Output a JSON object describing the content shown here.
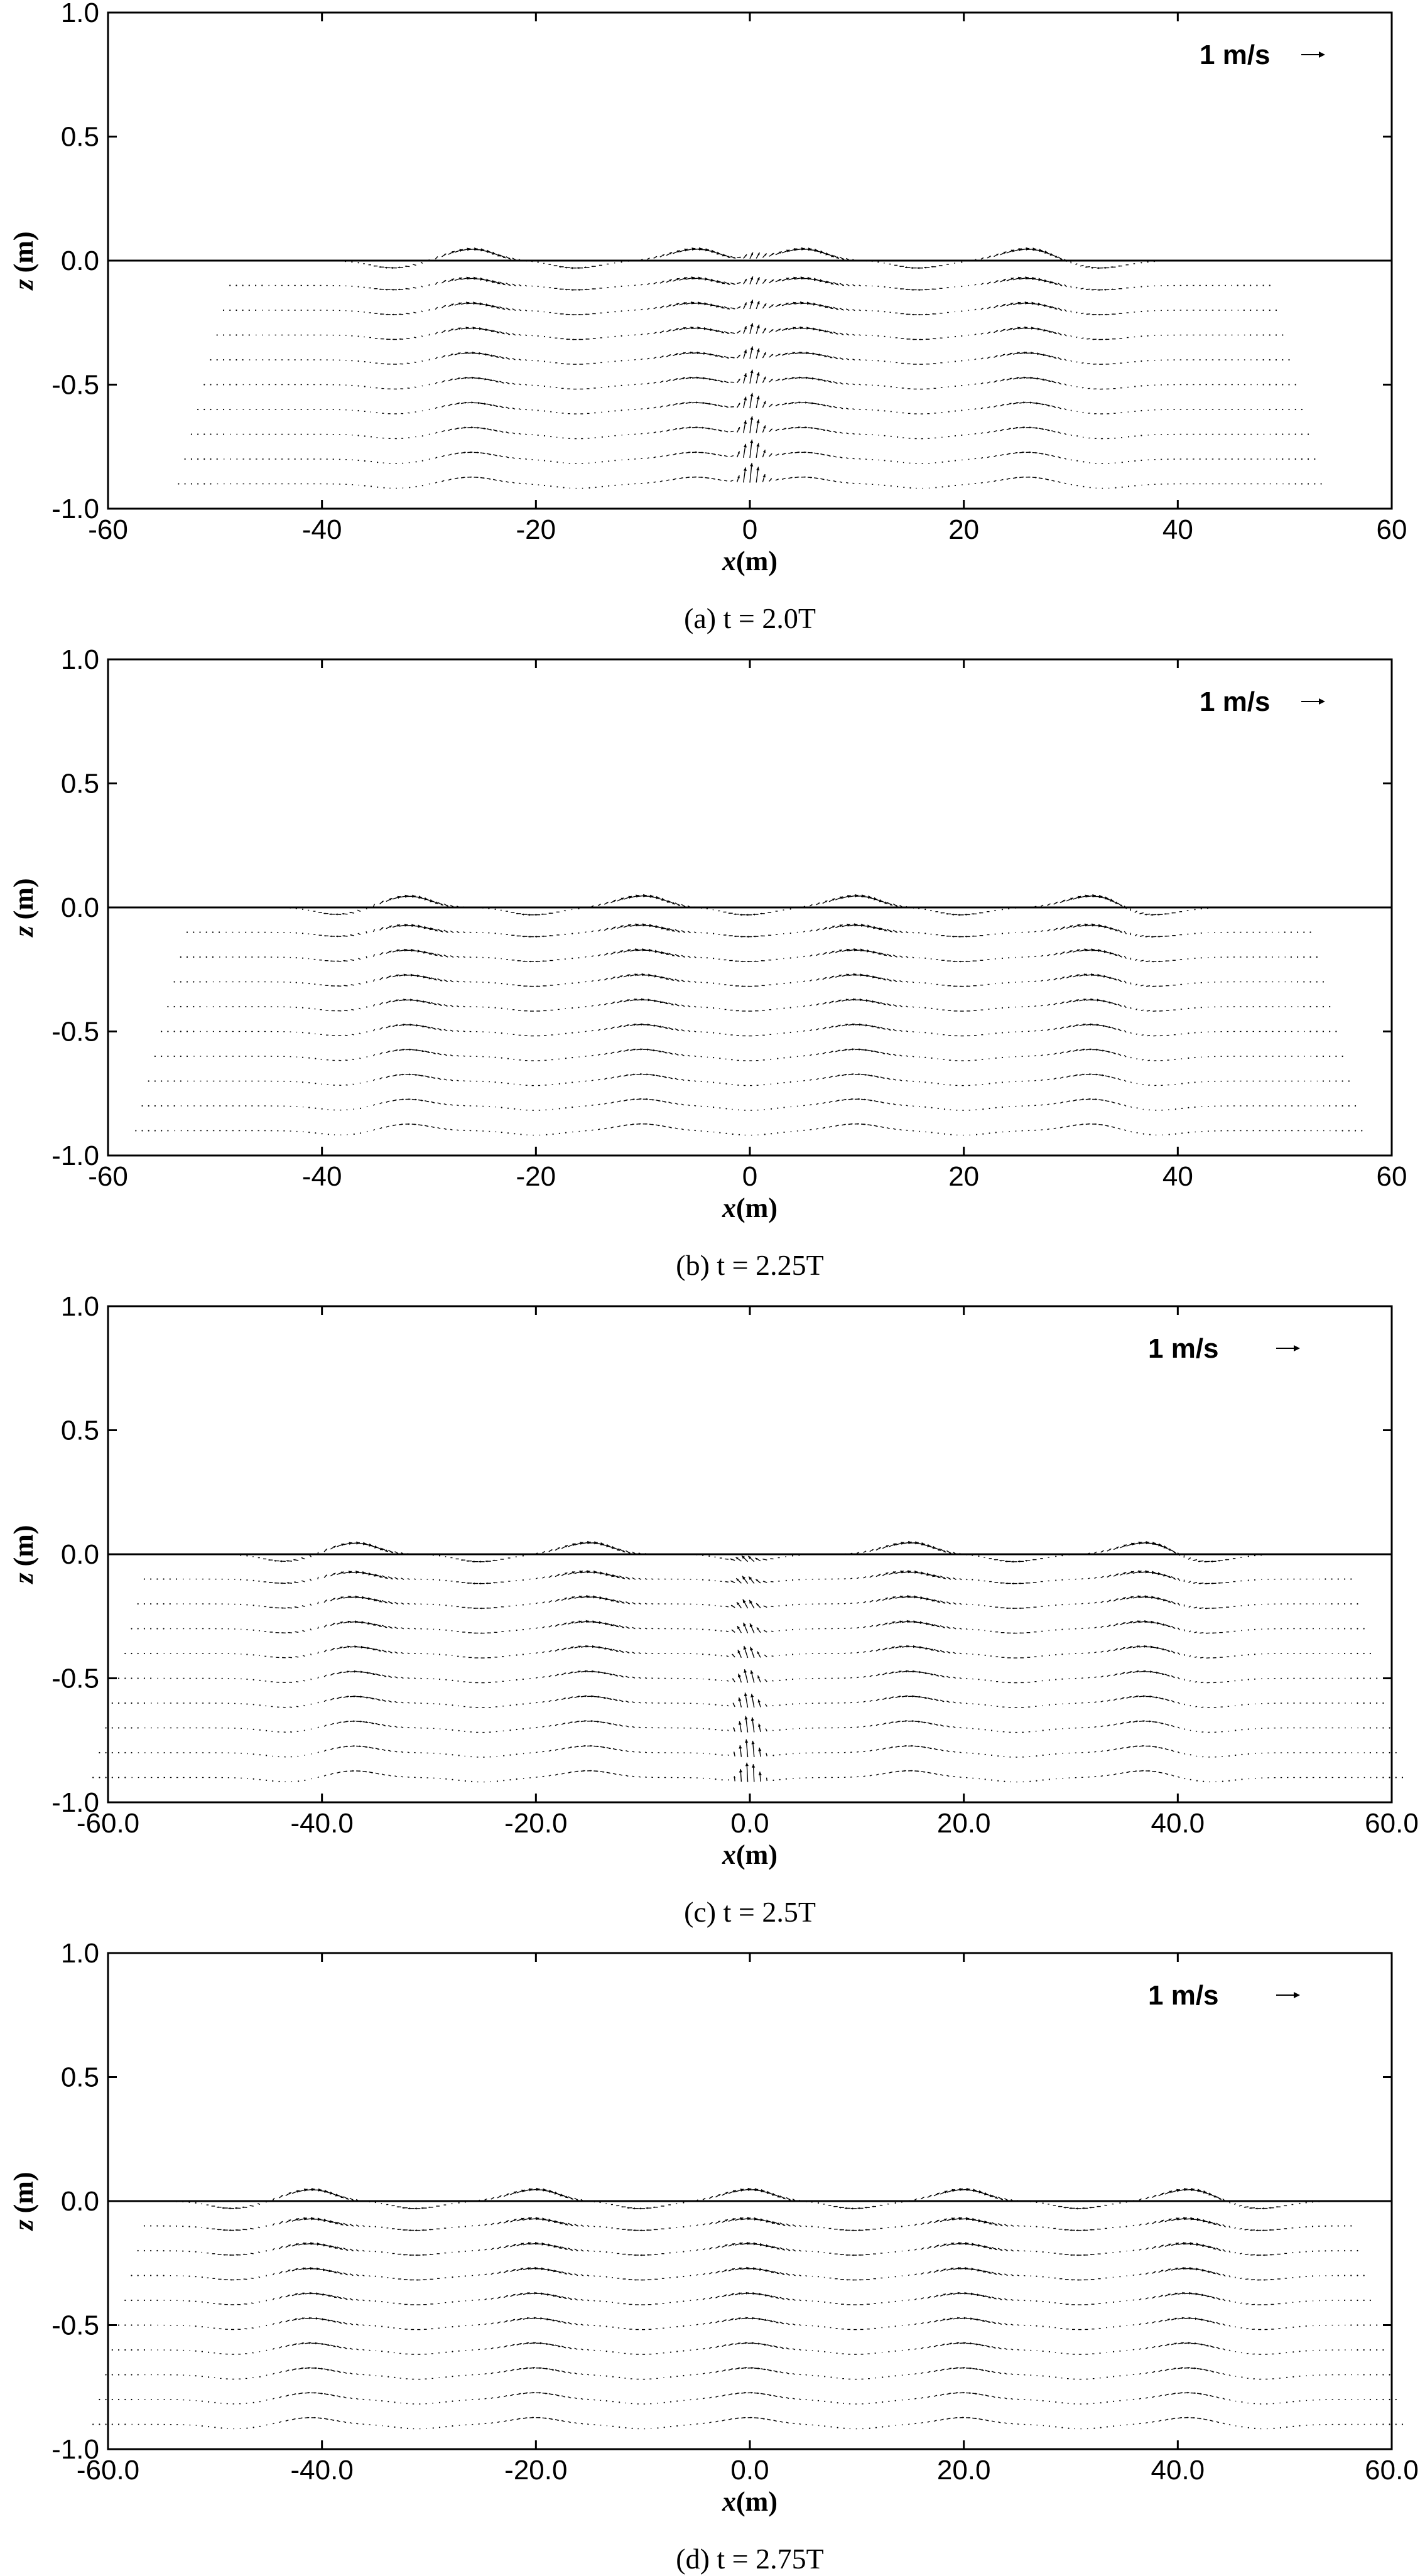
{
  "chart_data": [
    {
      "type": "vector-field",
      "panel": "a",
      "caption": "(a)  t = 2.0T",
      "xlabel_var": "x",
      "xlabel_unit": "(m)",
      "ylabel_var": "z",
      "ylabel_unit": "(m)",
      "xlim": [
        -60,
        60
      ],
      "ylim": [
        -1.0,
        1.0
      ],
      "xticks": [
        -60,
        -40,
        -20,
        0,
        20,
        40,
        60
      ],
      "xtick_labels": [
        "-60",
        "-40",
        "-20",
        "0",
        "20",
        "40",
        "60"
      ],
      "yticks": [
        -1.0,
        -0.5,
        0.0,
        0.5,
        1.0
      ],
      "ytick_labels": [
        "-1.0",
        "-0.5",
        "0.0",
        "0.5",
        "1.0"
      ],
      "reference_vector_label": "1 m/s",
      "reference_vector_speed": 1,
      "free_surface_z": 0.0,
      "field_extent_x": [
        -48,
        48
      ],
      "rows_z": [
        0.0,
        -0.1,
        -0.2,
        -0.3,
        -0.4,
        -0.5,
        -0.6,
        -0.7,
        -0.8,
        -0.9
      ],
      "crests_x": [
        -26,
        -5,
        5,
        26
      ],
      "troughs_x": [
        -33,
        -16,
        16,
        33
      ],
      "center_jet": true
    },
    {
      "type": "vector-field",
      "panel": "b",
      "caption": "(b)  t = 2.25T",
      "xlabel_var": "x",
      "xlabel_unit": "(m)",
      "ylabel_var": "z",
      "ylabel_unit": "(m)",
      "xlim": [
        -60,
        60
      ],
      "ylim": [
        -1.0,
        1.0
      ],
      "xticks": [
        -60,
        -40,
        -20,
        0,
        20,
        40,
        60
      ],
      "xtick_labels": [
        "-60",
        "-40",
        "-20",
        "0",
        "20",
        "40",
        "60"
      ],
      "yticks": [
        -1.0,
        -0.5,
        0.0,
        0.5,
        1.0
      ],
      "ytick_labels": [
        "-1.0",
        "-0.5",
        "0.0",
        "0.5",
        "1.0"
      ],
      "reference_vector_label": "1 m/s",
      "reference_vector_speed": 1,
      "free_surface_z": 0.0,
      "field_extent_x": [
        -52,
        52
      ],
      "rows_z": [
        0.0,
        -0.1,
        -0.2,
        -0.3,
        -0.4,
        -0.5,
        -0.6,
        -0.7,
        -0.8,
        -0.9
      ],
      "crests_x": [
        -32,
        -10,
        10,
        32
      ],
      "troughs_x": [
        -38,
        -20,
        0,
        20,
        38
      ],
      "center_jet": false
    },
    {
      "type": "vector-field",
      "panel": "c",
      "caption": "(c)  t = 2.5T",
      "xlabel_var": "x",
      "xlabel_unit": "(m)",
      "ylabel_var": "z",
      "ylabel_unit": "(m)",
      "xlim": [
        -60,
        60
      ],
      "ylim": [
        -1.0,
        1.0
      ],
      "xticks": [
        -60,
        -40,
        -20,
        0,
        20,
        40,
        60
      ],
      "xtick_labels": [
        "-60.0",
        "-40.0",
        "-20.0",
        "0.0",
        "20.0",
        "40.0",
        "60.0"
      ],
      "yticks": [
        -1.0,
        -0.5,
        0.0,
        0.5,
        1.0
      ],
      "ytick_labels": [
        "-1.0",
        "-0.5",
        "0.0",
        "0.5",
        "1.0"
      ],
      "reference_vector_label": "1 m/s",
      "reference_vector_speed": 1,
      "free_surface_z": 0.0,
      "field_extent_x": [
        -56,
        56
      ],
      "rows_z": [
        0.0,
        -0.1,
        -0.2,
        -0.3,
        -0.4,
        -0.5,
        -0.6,
        -0.7,
        -0.8,
        -0.9
      ],
      "crests_x": [
        -37,
        -15,
        15,
        37
      ],
      "troughs_x": [
        -43,
        -25,
        0,
        25,
        43
      ],
      "center_jet": true
    },
    {
      "type": "vector-field",
      "panel": "d",
      "caption": "(d)  t = 2.75T",
      "xlabel_var": "x",
      "xlabel_unit": "(m)",
      "ylabel_var": "z",
      "ylabel_unit": "(m)",
      "xlim": [
        -60,
        60
      ],
      "ylim": [
        -1.0,
        1.0
      ],
      "xticks": [
        -60,
        -40,
        -20,
        0,
        20,
        40,
        60
      ],
      "xtick_labels": [
        "-60.0",
        "-40.0",
        "-20.0",
        "0.0",
        "20.0",
        "40.0",
        "60.0"
      ],
      "yticks": [
        -1.0,
        -0.5,
        0.0,
        0.5,
        1.0
      ],
      "ytick_labels": [
        "-1.0",
        "-0.5",
        "0.0",
        "0.5",
        "1.0"
      ],
      "reference_vector_label": "1 m/s",
      "reference_vector_speed": 1,
      "free_surface_z": 0.0,
      "field_extent_x": [
        -56,
        56
      ],
      "rows_z": [
        0.0,
        -0.1,
        -0.2,
        -0.3,
        -0.4,
        -0.5,
        -0.6,
        -0.7,
        -0.8,
        -0.9
      ],
      "crests_x": [
        -41,
        -20,
        0,
        20,
        41
      ],
      "troughs_x": [
        -48,
        -31,
        -10,
        10,
        31,
        48
      ],
      "center_jet": false
    }
  ]
}
